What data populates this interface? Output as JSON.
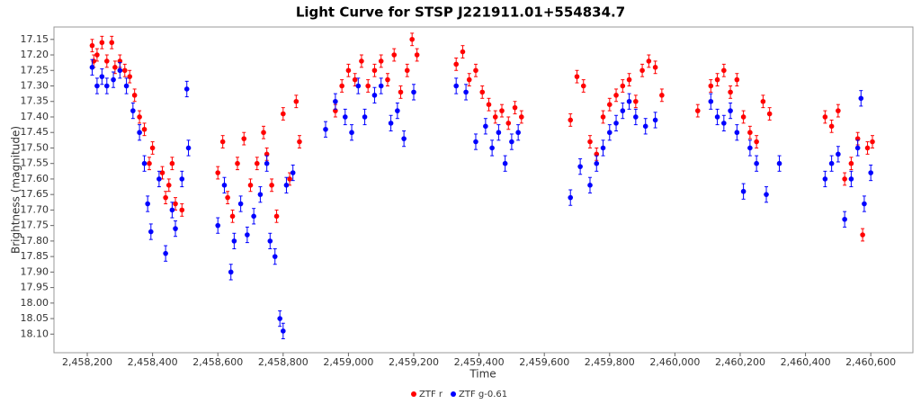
{
  "chart_data": {
    "type": "scatter",
    "title": "Light Curve for STSP J221911.01+554834.7",
    "xlabel": "Time",
    "ylabel": "Brightness (magnitude)",
    "xlim": [
      2458098,
      2460729
    ],
    "ylim": [
      17.11,
      18.16
    ],
    "yinverted": true,
    "grid": false,
    "legend": "bottom",
    "xticks": [
      {
        "value": 2458200,
        "label": "2,458,200"
      },
      {
        "value": 2458400,
        "label": "2,458,400"
      },
      {
        "value": 2458600,
        "label": "2,458,600"
      },
      {
        "value": 2458800,
        "label": "2,458,800"
      },
      {
        "value": 2459000,
        "label": "2,459,000"
      },
      {
        "value": 2459200,
        "label": "2,459,200"
      },
      {
        "value": 2459400,
        "label": "2,459,400"
      },
      {
        "value": 2459600,
        "label": "2,459,600"
      },
      {
        "value": 2459800,
        "label": "2,459,800"
      },
      {
        "value": 2460000,
        "label": "2,460,000"
      },
      {
        "value": 2460200,
        "label": "2,460,200"
      },
      {
        "value": 2460400,
        "label": "2,460,400"
      },
      {
        "value": 2460600,
        "label": "2,460,600"
      }
    ],
    "yticks": [
      17.15,
      {
        "value": 17.2,
        "label": "17.20"
      },
      17.25,
      {
        "value": 17.3,
        "label": "17.30"
      },
      17.35,
      {
        "value": 17.4,
        "label": "17.40"
      },
      17.45,
      {
        "value": 17.5,
        "label": "17.50"
      },
      17.55,
      {
        "value": 17.6,
        "label": "17.60"
      },
      17.65,
      {
        "value": 17.7,
        "label": "17.70"
      },
      17.75,
      {
        "value": 17.8,
        "label": "17.80"
      },
      17.85,
      {
        "value": 17.9,
        "label": "17.90"
      },
      17.95,
      {
        "value": 18,
        "label": "18.00"
      },
      18.05,
      {
        "value": 18.1,
        "label": "18.10"
      }
    ],
    "series": [
      {
        "name": "ZTF r",
        "color": "#ff0000",
        "x": [
          2458215,
          2458220,
          2458230,
          2458245,
          2458260,
          2458275,
          2458285,
          2458300,
          2458315,
          2458330,
          2458345,
          2458360,
          2458375,
          2458390,
          2458400,
          2458430,
          2458440,
          2458450,
          2458460,
          2458470,
          2458490,
          2458600,
          2458615,
          2458630,
          2458645,
          2458660,
          2458680,
          2458700,
          2458720,
          2458740,
          2458750,
          2458765,
          2458780,
          2458800,
          2458820,
          2458840,
          2458850,
          2458960,
          2458980,
          2459000,
          2459020,
          2459040,
          2459060,
          2459080,
          2459100,
          2459120,
          2459140,
          2459160,
          2459180,
          2459195,
          2459210,
          2459330,
          2459350,
          2459370,
          2459390,
          2459410,
          2459430,
          2459450,
          2459470,
          2459490,
          2459510,
          2459530,
          2459680,
          2459700,
          2459720,
          2459740,
          2459760,
          2459780,
          2459800,
          2459820,
          2459840,
          2459860,
          2459880,
          2459900,
          2459920,
          2459940,
          2459960,
          2460070,
          2460110,
          2460130,
          2460150,
          2460170,
          2460190,
          2460210,
          2460230,
          2460250,
          2460270,
          2460290,
          2460460,
          2460480,
          2460500,
          2460520,
          2460540,
          2460560,
          2460575,
          2460590,
          2460605
        ],
        "values": [
          17.17,
          17.22,
          17.2,
          17.16,
          17.22,
          17.16,
          17.24,
          17.22,
          17.25,
          17.27,
          17.33,
          17.4,
          17.44,
          17.55,
          17.5,
          17.58,
          17.66,
          17.62,
          17.55,
          17.68,
          17.7,
          17.58,
          17.48,
          17.66,
          17.72,
          17.55,
          17.47,
          17.62,
          17.55,
          17.45,
          17.52,
          17.62,
          17.72,
          17.39,
          17.6,
          17.35,
          17.48,
          17.38,
          17.3,
          17.25,
          17.28,
          17.22,
          17.3,
          17.25,
          17.22,
          17.28,
          17.2,
          17.32,
          17.25,
          17.15,
          17.2,
          17.23,
          17.19,
          17.28,
          17.25,
          17.32,
          17.36,
          17.4,
          17.38,
          17.42,
          17.37,
          17.4,
          17.41,
          17.27,
          17.3,
          17.48,
          17.52,
          17.4,
          17.36,
          17.33,
          17.3,
          17.28,
          17.35,
          17.25,
          17.22,
          17.24,
          17.33,
          17.38,
          17.3,
          17.28,
          17.25,
          17.32,
          17.28,
          17.4,
          17.45,
          17.48,
          17.35,
          17.39,
          17.4,
          17.43,
          17.38,
          17.6,
          17.55,
          17.47,
          17.78,
          17.5,
          17.48
        ],
        "errors": [
          0.02,
          0.02,
          0.02,
          0.02,
          0.02,
          0.02,
          0.02,
          0.02,
          0.02,
          0.02,
          0.02,
          0.02,
          0.02,
          0.02,
          0.02,
          0.02,
          0.02,
          0.02,
          0.02,
          0.02,
          0.02,
          0.02,
          0.02,
          0.02,
          0.02,
          0.02,
          0.02,
          0.02,
          0.02,
          0.02,
          0.02,
          0.02,
          0.02,
          0.02,
          0.02,
          0.02,
          0.02,
          0.02,
          0.02,
          0.02,
          0.02,
          0.02,
          0.02,
          0.02,
          0.02,
          0.02,
          0.02,
          0.02,
          0.02,
          0.02,
          0.02,
          0.02,
          0.02,
          0.02,
          0.02,
          0.02,
          0.02,
          0.02,
          0.02,
          0.02,
          0.02,
          0.02,
          0.02,
          0.02,
          0.02,
          0.02,
          0.02,
          0.02,
          0.02,
          0.02,
          0.02,
          0.02,
          0.02,
          0.02,
          0.02,
          0.02,
          0.02,
          0.02,
          0.02,
          0.02,
          0.02,
          0.02,
          0.02,
          0.02,
          0.02,
          0.02,
          0.02,
          0.02,
          0.02,
          0.02,
          0.02,
          0.02,
          0.02,
          0.02,
          0.02,
          0.02,
          0.02
        ]
      },
      {
        "name": "ZTF g-0.61",
        "color": "#0000ff",
        "x": [
          2458215,
          2458230,
          2458245,
          2458260,
          2458280,
          2458300,
          2458320,
          2458340,
          2458360,
          2458375,
          2458385,
          2458395,
          2458420,
          2458440,
          2458460,
          2458470,
          2458490,
          2458505,
          2458510,
          2458600,
          2458620,
          2458640,
          2458650,
          2458670,
          2458690,
          2458710,
          2458730,
          2458750,
          2458760,
          2458775,
          2458790,
          2458800,
          2458810,
          2458830,
          2458930,
          2458960,
          2458990,
          2459010,
          2459030,
          2459050,
          2459080,
          2459100,
          2459130,
          2459150,
          2459170,
          2459200,
          2459330,
          2459360,
          2459390,
          2459420,
          2459440,
          2459460,
          2459480,
          2459500,
          2459520,
          2459680,
          2459710,
          2459740,
          2459760,
          2459780,
          2459800,
          2459820,
          2459840,
          2459860,
          2459880,
          2459910,
          2459940,
          2460110,
          2460130,
          2460150,
          2460170,
          2460190,
          2460210,
          2460230,
          2460250,
          2460280,
          2460320,
          2460460,
          2460480,
          2460500,
          2460520,
          2460540,
          2460560,
          2460570,
          2460580,
          2460600
        ],
        "values": [
          17.24,
          17.3,
          17.27,
          17.3,
          17.28,
          17.25,
          17.3,
          17.38,
          17.45,
          17.55,
          17.68,
          17.77,
          17.6,
          17.84,
          17.7,
          17.76,
          17.6,
          17.31,
          17.5,
          17.75,
          17.62,
          17.9,
          17.8,
          17.68,
          17.78,
          17.72,
          17.65,
          17.55,
          17.8,
          17.85,
          18.05,
          18.09,
          17.62,
          17.58,
          17.44,
          17.35,
          17.4,
          17.45,
          17.3,
          17.4,
          17.33,
          17.3,
          17.42,
          17.38,
          17.47,
          17.32,
          17.3,
          17.32,
          17.48,
          17.43,
          17.5,
          17.45,
          17.55,
          17.48,
          17.45,
          17.66,
          17.56,
          17.62,
          17.55,
          17.5,
          17.45,
          17.42,
          17.38,
          17.35,
          17.4,
          17.43,
          17.41,
          17.35,
          17.4,
          17.42,
          17.38,
          17.45,
          17.64,
          17.5,
          17.55,
          17.65,
          17.55,
          17.6,
          17.55,
          17.52,
          17.73,
          17.6,
          17.5,
          17.34,
          17.68,
          17.58
        ],
        "errors": [
          0.025,
          0.025,
          0.025,
          0.025,
          0.025,
          0.025,
          0.025,
          0.025,
          0.025,
          0.025,
          0.025,
          0.025,
          0.025,
          0.025,
          0.025,
          0.025,
          0.025,
          0.025,
          0.025,
          0.025,
          0.025,
          0.025,
          0.025,
          0.025,
          0.025,
          0.025,
          0.025,
          0.025,
          0.025,
          0.025,
          0.025,
          0.025,
          0.025,
          0.025,
          0.025,
          0.025,
          0.025,
          0.025,
          0.025,
          0.025,
          0.025,
          0.025,
          0.025,
          0.025,
          0.025,
          0.025,
          0.025,
          0.025,
          0.025,
          0.025,
          0.025,
          0.025,
          0.025,
          0.025,
          0.025,
          0.025,
          0.025,
          0.025,
          0.025,
          0.025,
          0.025,
          0.025,
          0.025,
          0.025,
          0.025,
          0.025,
          0.025,
          0.025,
          0.025,
          0.025,
          0.025,
          0.025,
          0.025,
          0.025,
          0.025,
          0.025,
          0.025,
          0.025,
          0.025,
          0.025,
          0.025,
          0.025,
          0.025,
          0.025,
          0.025,
          0.025
        ]
      }
    ]
  }
}
